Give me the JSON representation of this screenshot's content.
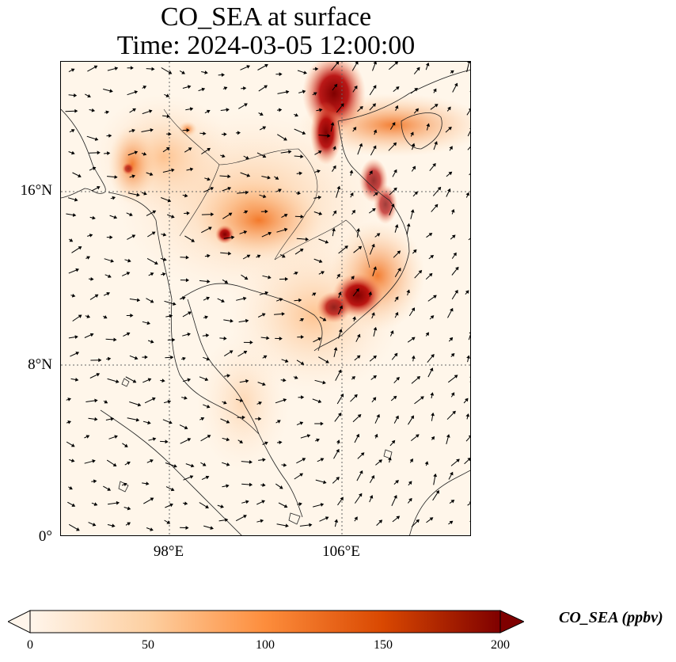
{
  "title": {
    "line1": "CO_SEA at surface",
    "line2": "Time: 2024-03-05 12:00:00"
  },
  "axes": {
    "lat_labels": [
      "16°N",
      "8°N",
      "0°"
    ],
    "lon_labels": [
      "98°E",
      "106°E"
    ]
  },
  "colorbar": {
    "label": "CO_SEA (ppbv)",
    "ticks": [
      "0",
      "50",
      "100",
      "150",
      "200"
    ],
    "min": 0,
    "max": 200,
    "extend": "both",
    "colormap": [
      "#fff5eb",
      "#fdd0a2",
      "#fd8d3c",
      "#d94801",
      "#7f0000"
    ]
  },
  "colors": {
    "background": "#fff6ea",
    "coast": "#222222",
    "grid": "#666666"
  }
}
